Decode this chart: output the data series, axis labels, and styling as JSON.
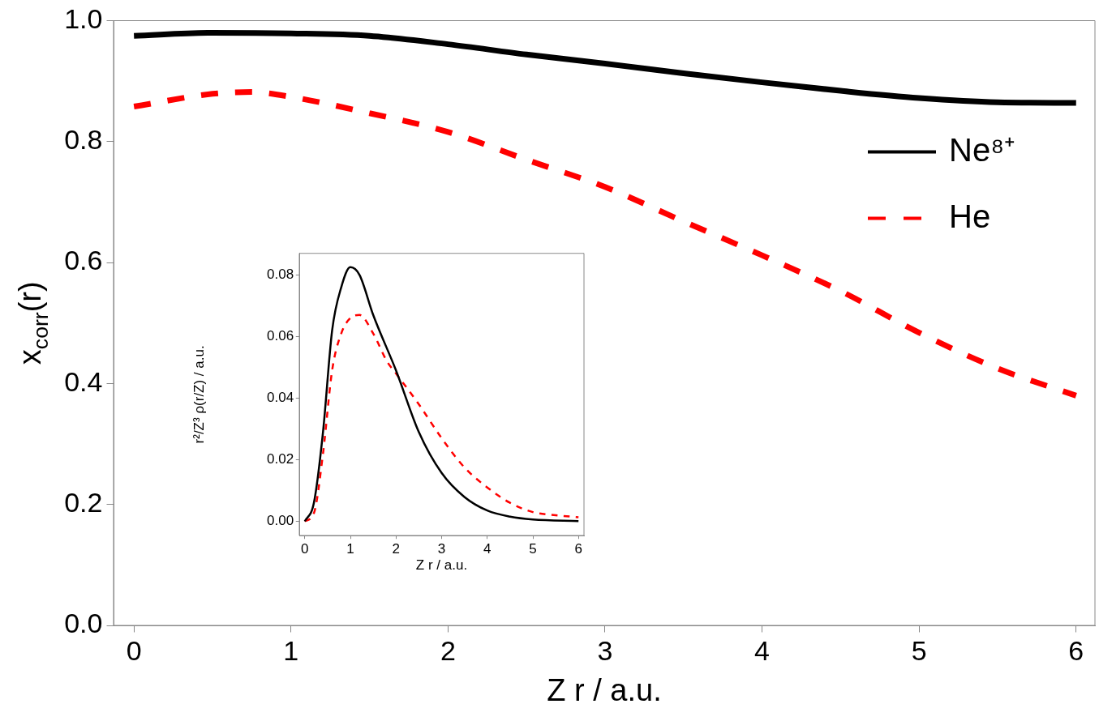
{
  "chart_data": [
    {
      "type": "line",
      "xlabel": "Z r / a.u.",
      "ylabel": "x$_{corr}$(r)",
      "xlim": [
        -0.13,
        6.12
      ],
      "ylim": [
        0,
        1
      ],
      "xticks": [
        0,
        1,
        2,
        3,
        4,
        5,
        6
      ],
      "yticks": [
        {
          "value": 0,
          "label": "0.0"
        },
        {
          "value": 0.2,
          "label": "0.2"
        },
        {
          "value": 0.4,
          "label": "0.4"
        },
        {
          "value": 0.6,
          "label": "0.6"
        },
        {
          "value": 0.8,
          "label": "0.8"
        },
        {
          "value": 1,
          "label": "1.0"
        }
      ],
      "legend": "top right",
      "series": [
        {
          "name": "Ne⁸⁺",
          "color": "#000000",
          "line_style": "solid",
          "x": [
            0,
            0.5,
            1,
            1.5,
            2,
            2.5,
            3,
            3.5,
            4,
            4.5,
            5,
            5.5,
            6
          ],
          "values": [
            0.975,
            0.98,
            0.979,
            0.975,
            0.961,
            0.944,
            0.929,
            0.913,
            0.898,
            0.884,
            0.872,
            0.865,
            0.864
          ]
        },
        {
          "name": "He",
          "color": "#ff0000",
          "line_style": "dashed",
          "x": [
            0,
            0.5,
            0.75,
            1,
            1.5,
            2,
            2.5,
            3,
            3.5,
            4,
            4.5,
            5,
            5.5,
            6
          ],
          "values": [
            0.858,
            0.879,
            0.882,
            0.874,
            0.847,
            0.816,
            0.77,
            0.725,
            0.668,
            0.612,
            0.553,
            0.484,
            0.425,
            0.38
          ]
        }
      ]
    },
    {
      "type": "line",
      "xlabel": "Z r / a.u.",
      "ylabel": "r²/Z³ ρ(r/Z) / a.u.",
      "xlim": [
        -0.12,
        6.12
      ],
      "ylim": [
        -0.0046,
        0.087
      ],
      "xticks": [
        0,
        1,
        2,
        3,
        4,
        5,
        6
      ],
      "yticks": [
        {
          "value": 0,
          "label": "0.00"
        },
        {
          "value": 0.02,
          "label": "0.02"
        },
        {
          "value": 0.04,
          "label": "0.04"
        },
        {
          "value": 0.06,
          "label": "0.06"
        },
        {
          "value": 0.08,
          "label": "0.08"
        }
      ],
      "series": [
        {
          "color": "#000000",
          "line_style": "solid",
          "x": [
            0,
            0.2,
            0.4,
            0.6,
            0.8,
            1,
            1.2,
            1.5,
            2,
            2.5,
            3,
            3.5,
            4,
            4.5,
            5,
            6
          ],
          "values": [
            0,
            0.006,
            0.029,
            0.062,
            0.076,
            0.0825,
            0.08,
            0.067,
            0.049,
            0.029,
            0.0157,
            0.0079,
            0.0035,
            0.0015,
            0.0006,
            0.0001
          ]
        },
        {
          "color": "#ff0000",
          "line_style": "dashed",
          "x": [
            0,
            0.2,
            0.4,
            0.6,
            0.8,
            1,
            1.2,
            1.5,
            1.8,
            2,
            2.5,
            3,
            3.5,
            4,
            4.5,
            5,
            5.5,
            6
          ],
          "values": [
            0,
            0.0026,
            0.022,
            0.049,
            0.061,
            0.066,
            0.067,
            0.061,
            0.052,
            0.048,
            0.038,
            0.027,
            0.0175,
            0.011,
            0.006,
            0.003,
            0.002,
            0.0013
          ]
        }
      ]
    }
  ]
}
